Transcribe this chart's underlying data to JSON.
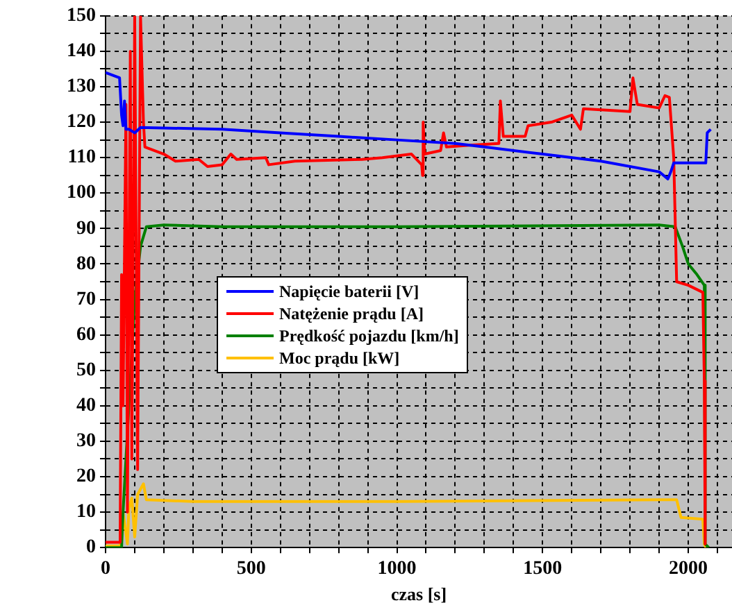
{
  "chart_data": {
    "type": "line",
    "xlabel": "czas [s]",
    "xlim": [
      0,
      2150
    ],
    "ylim": [
      0,
      150
    ],
    "xticks": [
      0,
      {
        "value": 100,
        "label": null
      },
      {
        "value": 200,
        "label": null
      },
      {
        "value": 300,
        "label": null
      },
      {
        "value": 400,
        "label": null
      },
      500,
      {
        "value": 600,
        "label": null
      },
      {
        "value": 700,
        "label": null
      },
      {
        "value": 800,
        "label": null
      },
      {
        "value": 900,
        "label": null
      },
      1000,
      {
        "value": 1100,
        "label": null
      },
      {
        "value": 1200,
        "label": null
      },
      {
        "value": 1300,
        "label": null
      },
      {
        "value": 1400,
        "label": null
      },
      1500,
      {
        "value": 1600,
        "label": null
      },
      {
        "value": 1700,
        "label": null
      },
      {
        "value": 1800,
        "label": null
      },
      {
        "value": 1900,
        "label": null
      },
      2000,
      {
        "value": 2100,
        "label": null
      }
    ],
    "yticks": [
      0,
      {
        "value": 5,
        "label": null
      },
      10,
      {
        "value": 15,
        "label": null
      },
      20,
      {
        "value": 25,
        "label": null
      },
      30,
      {
        "value": 35,
        "label": null
      },
      40,
      {
        "value": 45,
        "label": null
      },
      50,
      {
        "value": 55,
        "label": null
      },
      60,
      {
        "value": 65,
        "label": null
      },
      70,
      {
        "value": 75,
        "label": null
      },
      80,
      {
        "value": 85,
        "label": null
      },
      90,
      {
        "value": 95,
        "label": null
      },
      100,
      {
        "value": 105,
        "label": null
      },
      110,
      {
        "value": 115,
        "label": null
      },
      120,
      {
        "value": 125,
        "label": null
      },
      130,
      {
        "value": 135,
        "label": null
      },
      140,
      {
        "value": 145,
        "label": null
      },
      150
    ],
    "grid": true,
    "legend": "center left",
    "line_style": "solid",
    "marker": "none",
    "series": [
      {
        "name": "Napięcie baterii [V]",
        "color": "#0000ff",
        "x": [
          0,
          48,
          55,
          60,
          65,
          70,
          80,
          100,
          120,
          400,
          600,
          800,
          1000,
          1200,
          1300,
          1500,
          1700,
          1900,
          1930,
          1940,
          1950,
          2060,
          2065,
          2077
        ],
        "values": [
          134,
          132.5,
          122,
          119,
          126,
          118,
          118,
          117,
          118.5,
          118,
          117,
          116,
          115,
          114,
          113,
          111,
          109,
          106,
          104,
          106,
          108.5,
          108.5,
          117,
          118
        ]
      },
      {
        "name": "Natężenie prądu [A]",
        "color": "#ff0000",
        "x": [
          0,
          50,
          55,
          60,
          70,
          75,
          85,
          90,
          100,
          110,
          120,
          130,
          135,
          200,
          240,
          320,
          350,
          400,
          430,
          450,
          550,
          560,
          650,
          880,
          950,
          1050,
          1085,
          1088,
          1090,
          1095,
          1150,
          1160,
          1170,
          1250,
          1350,
          1355,
          1365,
          1440,
          1450,
          1530,
          1600,
          1630,
          1640,
          1800,
          1810,
          1825,
          1900,
          1920,
          1935,
          1950,
          1960,
          2000,
          2050,
          2055,
          2058
        ],
        "values": [
          1.5,
          1.5,
          77,
          40,
          125,
          10,
          140,
          25,
          150,
          22,
          150,
          120,
          113,
          111,
          109,
          109.5,
          107.5,
          108,
          111,
          109.5,
          110,
          108,
          109,
          109.5,
          110,
          111,
          108,
          105,
          120,
          111,
          112,
          117,
          113,
          113.5,
          114,
          126,
          116,
          116,
          119,
          120,
          122,
          118,
          123.8,
          123,
          132.5,
          125,
          124,
          127.5,
          127,
          110,
          75,
          74,
          72,
          47,
          1
        ]
      },
      {
        "name": "Prędkość pojazdu [km/h]",
        "color": "#008000",
        "x": [
          0,
          55,
          60,
          80,
          100,
          120,
          140,
          200,
          400,
          1000,
          1900,
          1955,
          1980,
          2000,
          2030,
          2055,
          2058,
          2070
        ],
        "values": [
          0,
          0,
          10,
          40,
          70,
          85,
          90.5,
          91,
          90.5,
          90.5,
          91,
          90.5,
          85,
          80,
          77,
          74,
          1,
          0
        ]
      },
      {
        "name": "Moc prądu [kW]",
        "color": "#ffc000",
        "x": [
          0,
          50,
          60,
          75,
          80,
          90,
          100,
          110,
          130,
          140,
          300,
          500,
          1000,
          1900,
          1960,
          1975,
          2050,
          2055,
          2060
        ],
        "values": [
          0.5,
          0.5,
          10,
          1,
          11,
          14,
          3,
          15,
          18,
          13.5,
          13,
          13,
          13,
          13.5,
          13.5,
          8.5,
          8,
          1,
          0
        ]
      }
    ]
  }
}
